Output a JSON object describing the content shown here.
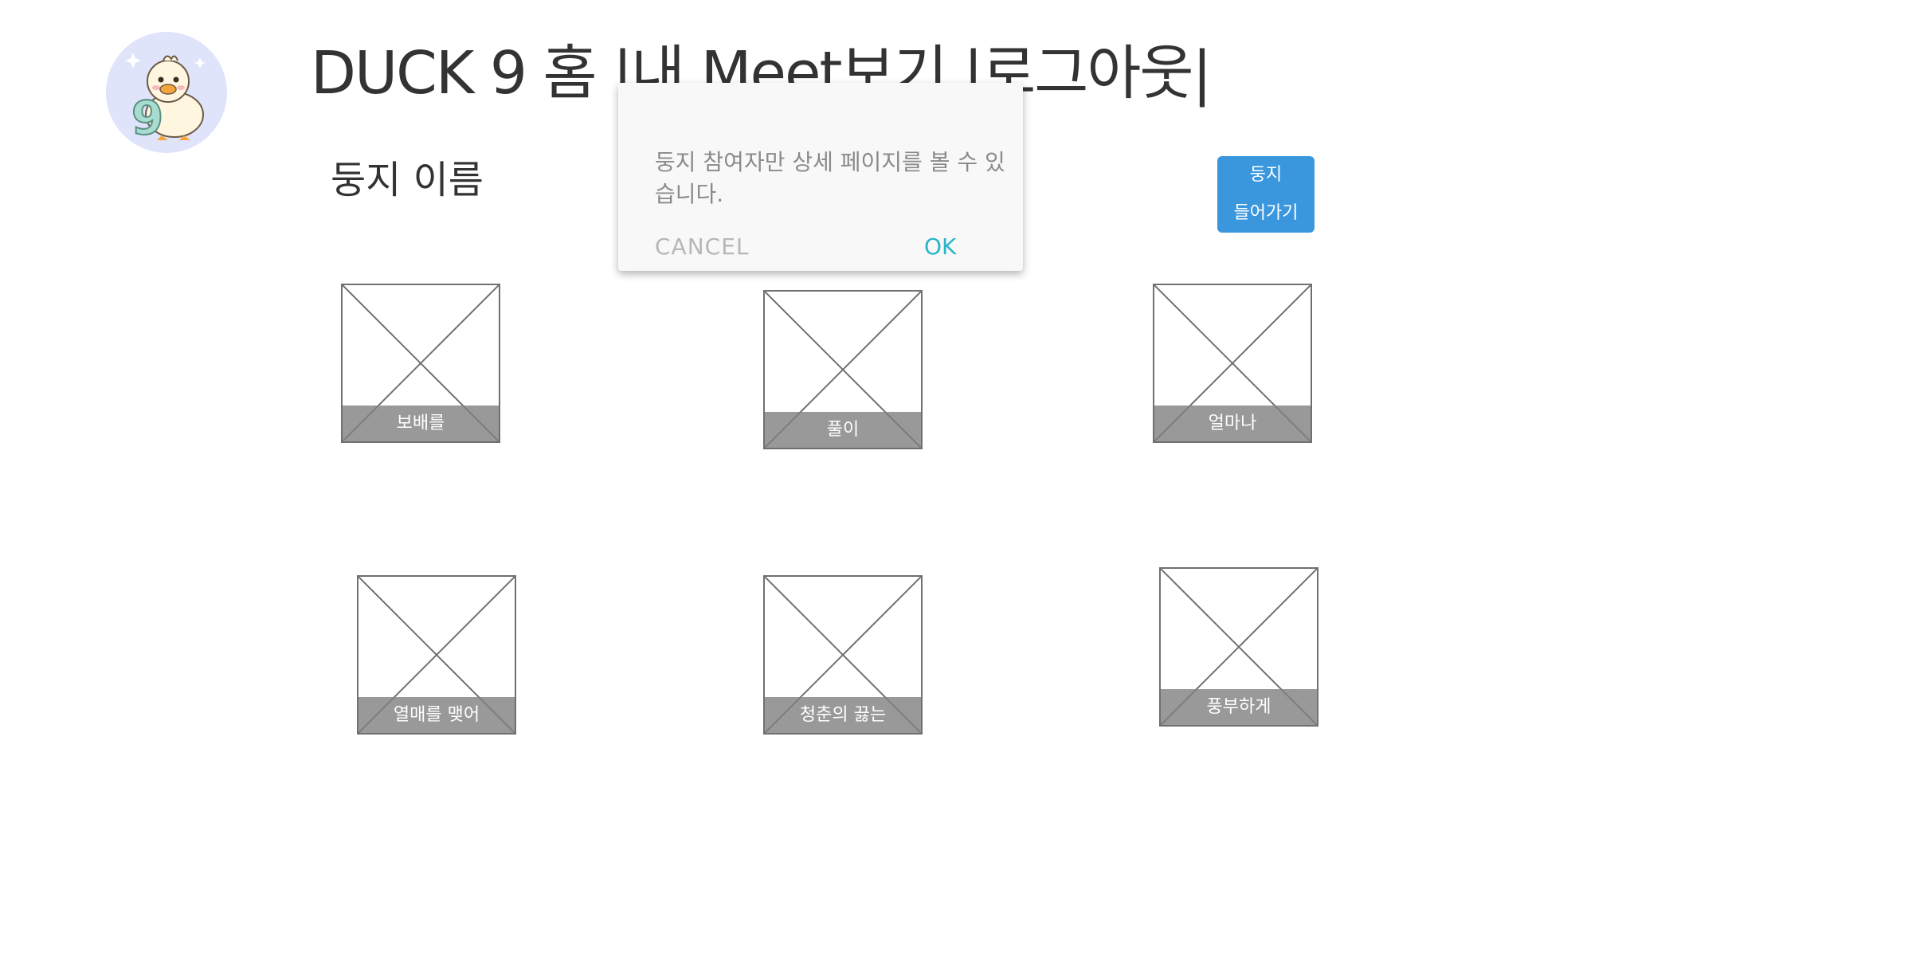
{
  "header": {
    "brand": "DUCK 9",
    "nav": [
      "홈",
      "|내 Meet보기",
      "|로그아웃|"
    ]
  },
  "nest": {
    "title": "둥지 이름",
    "join_button": "둥지\n들어가기"
  },
  "cards": [
    {
      "label": "보배를"
    },
    {
      "label": "풀이"
    },
    {
      "label": "얼마나"
    },
    {
      "label": "열매를 맺어"
    },
    {
      "label": "청춘의 끓는"
    },
    {
      "label": "풍부하게"
    }
  ],
  "dialog": {
    "message": "둥지 참여자만 상세 페이지를 볼 수 있습니다.",
    "cancel": "CANCEL",
    "ok": "OK"
  },
  "colors": {
    "accent_blue": "#3a97dd",
    "ok_teal": "#2ab5c6",
    "logo_bg": "#dfe4fb"
  }
}
